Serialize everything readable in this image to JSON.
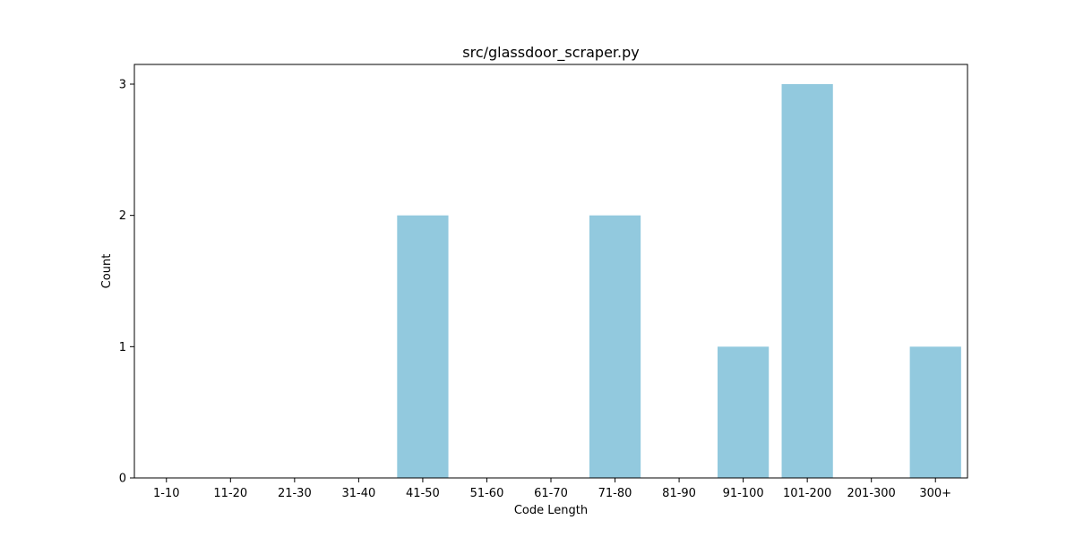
{
  "chart_data": {
    "type": "bar",
    "title": "src/glassdoor_scraper.py",
    "xlabel": "Code Length",
    "ylabel": "Count",
    "categories": [
      "1-10",
      "11-20",
      "21-30",
      "31-40",
      "41-50",
      "51-60",
      "61-70",
      "71-80",
      "81-90",
      "91-100",
      "101-200",
      "201-300",
      "300+"
    ],
    "values": [
      0,
      0,
      0,
      0,
      2,
      0,
      0,
      2,
      0,
      1,
      3,
      0,
      1
    ],
    "yticks": [
      0,
      1,
      2,
      3
    ],
    "ylim": [
      0,
      3.15
    ],
    "grid": false,
    "bar_color": "#92c9de"
  }
}
